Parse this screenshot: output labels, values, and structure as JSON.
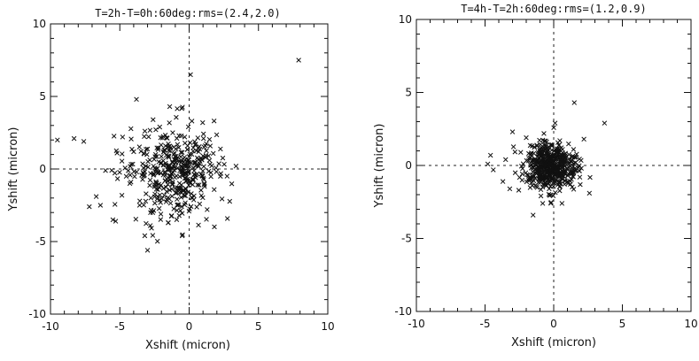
{
  "chart_data": [
    {
      "type": "scatter",
      "title": "T=2h-T=0h:60deg:rms=(2.4,2.0)",
      "xlabel": "Xshift (micron)",
      "ylabel": "Yshift (micron)",
      "xlim": [
        -10,
        10
      ],
      "ylim": [
        -10,
        10
      ],
      "xticks": [
        "-10",
        "-5",
        "0",
        "5",
        "10"
      ],
      "yticks": [
        "-10",
        "-5",
        "0",
        "5",
        "10"
      ],
      "marker": "x",
      "reference_lines": {
        "x": 0,
        "y": 0,
        "style": "dashed"
      },
      "grid": false,
      "legend": "none",
      "distribution": {
        "center": [
          -1.0,
          -0.2
        ],
        "sigma": [
          1.6,
          1.5
        ],
        "count": 420
      },
      "points": [
        [
          7.9,
          7.5
        ],
        [
          0.1,
          6.5
        ],
        [
          -3.8,
          4.8
        ],
        [
          -9.5,
          2.0
        ],
        [
          -8.3,
          2.1
        ],
        [
          -7.6,
          1.9
        ],
        [
          -7.2,
          -2.6
        ],
        [
          -6.7,
          -1.9
        ],
        [
          -6.4,
          -2.5
        ],
        [
          -5.5,
          -3.5
        ],
        [
          -5.3,
          -3.6
        ],
        [
          -3.2,
          -4.6
        ],
        [
          -3.0,
          -5.6
        ],
        [
          -2.6,
          3.4
        ],
        [
          -1.4,
          4.3
        ],
        [
          0.2,
          3.3
        ],
        [
          -4.8,
          2.2
        ],
        [
          -5.2,
          1.1
        ],
        [
          -4.2,
          -0.9
        ],
        [
          1.3,
          -2.8
        ],
        [
          1.0,
          0.9
        ],
        [
          -2.8,
          -3.9
        ],
        [
          -0.5,
          -4.6
        ],
        [
          -1.5,
          -3.7
        ]
      ]
    },
    {
      "type": "scatter",
      "title": "T=4h-T=2h:60deg:rms=(1.2,0.9)",
      "xlabel": "Xshift (micron)",
      "ylabel": "Yshift (micron)",
      "xlim": [
        -10,
        10
      ],
      "ylim": [
        -10,
        10
      ],
      "xticks": [
        "-10",
        "-5",
        "0",
        "5",
        "10"
      ],
      "yticks": [
        "-10",
        "-5",
        "0",
        "5",
        "10"
      ],
      "marker": "x",
      "reference_lines": {
        "x": 0,
        "y": 0,
        "style": "dashed"
      },
      "grid": false,
      "legend": "none",
      "distribution": {
        "center": [
          -0.2,
          -0.1
        ],
        "sigma": [
          0.9,
          0.8
        ],
        "count": 520
      },
      "points": [
        [
          3.7,
          2.9
        ],
        [
          1.5,
          4.3
        ],
        [
          0.1,
          2.9
        ],
        [
          -3.0,
          2.3
        ],
        [
          -4.6,
          0.7
        ],
        [
          -4.8,
          0.1
        ],
        [
          -4.4,
          -0.3
        ],
        [
          -3.7,
          -1.1
        ],
        [
          -3.2,
          -1.6
        ],
        [
          -2.8,
          -0.5
        ],
        [
          -1.5,
          -3.4
        ],
        [
          2.6,
          -1.9
        ],
        [
          2.2,
          1.8
        ],
        [
          -2.0,
          1.9
        ],
        [
          -2.4,
          0.9
        ],
        [
          1.9,
          -0.8
        ],
        [
          -0.8,
          -2.6
        ],
        [
          0.6,
          -2.6
        ],
        [
          -3.5,
          0.4
        ]
      ]
    }
  ]
}
